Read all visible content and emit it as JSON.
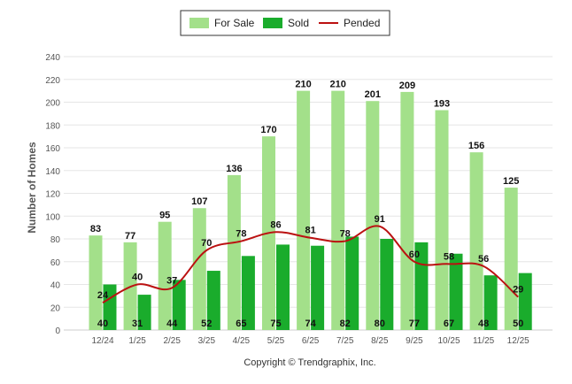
{
  "chart_data": {
    "type": "bar",
    "categories": [
      "12/24",
      "1/25",
      "2/25",
      "3/25",
      "4/25",
      "5/25",
      "6/25",
      "7/25",
      "8/25",
      "9/25",
      "10/25",
      "11/25",
      "12/25"
    ],
    "series": [
      {
        "name": "For Sale",
        "type": "bar",
        "color": "#a3e08a",
        "values": [
          83,
          77,
          95,
          107,
          136,
          170,
          210,
          210,
          201,
          209,
          193,
          156,
          125
        ]
      },
      {
        "name": "Sold",
        "type": "bar",
        "color": "#1aac2c",
        "values": [
          40,
          31,
          44,
          52,
          65,
          75,
          74,
          82,
          80,
          77,
          67,
          48,
          50
        ]
      },
      {
        "name": "Pended",
        "type": "line",
        "color": "#bb1111",
        "values": [
          24,
          40,
          37,
          70,
          78,
          86,
          81,
          78,
          91,
          60,
          58,
          56,
          29
        ]
      }
    ],
    "ylabel": "Number of Homes",
    "xlabel": "",
    "ylim": [
      0,
      240
    ],
    "yticks": [
      0,
      20,
      40,
      60,
      80,
      100,
      120,
      140,
      160,
      180,
      200,
      220,
      240
    ],
    "grid": true,
    "legend_position": "top-center",
    "footer": "Copyright © Trendgraphix, Inc."
  }
}
